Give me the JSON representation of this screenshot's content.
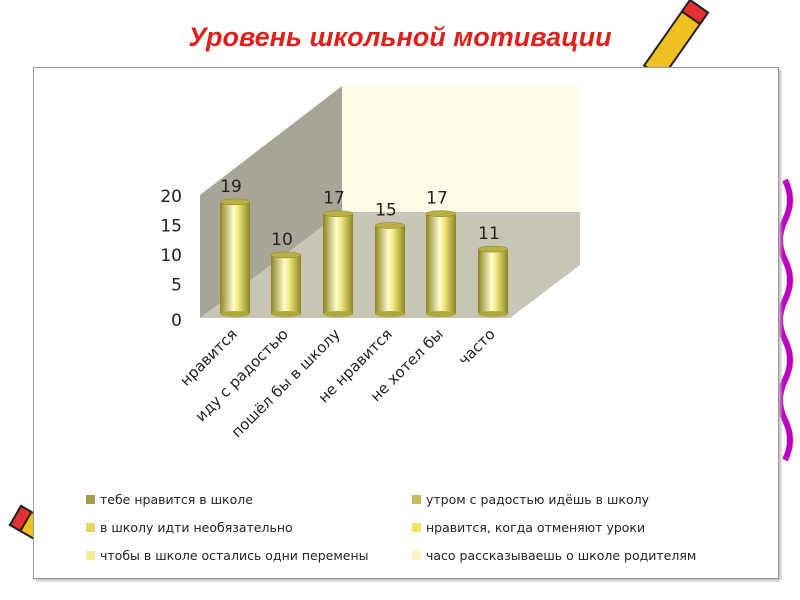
{
  "title": "Уровень школьной мотивации",
  "chart_data": {
    "type": "bar",
    "style": "3d-cylinder",
    "categories": [
      "нравится",
      "иду с радостью",
      "пошёл бы в школу",
      "не нравится",
      "не хотел бы",
      "часто"
    ],
    "values": [
      19,
      10,
      17,
      15,
      17,
      11
    ],
    "ylim": [
      0,
      20
    ],
    "yticks": [
      "0",
      "5",
      "10",
      "15",
      "20"
    ],
    "data_labels": [
      "19",
      "10",
      "17",
      "15",
      "17",
      "11"
    ],
    "grid": false,
    "legend_position": "bottom",
    "legend": [
      {
        "label": "тебе нравится в школе",
        "color": "#a69c4a"
      },
      {
        "label": "утром с радостью идёшь в школу",
        "color": "#c8bd5a"
      },
      {
        "label": "в школу идти необязательно",
        "color": "#e2d660"
      },
      {
        "label": "нравится, когда отменяют уроки",
        "color": "#f0e46a"
      },
      {
        "label": "чтобы в школе остались одни перемены",
        "color": "#f6ee94"
      },
      {
        "label": "часо рассказываешь о школе родителям",
        "color": "#faf4c0"
      }
    ],
    "colors": {
      "bar": "#e8e070",
      "back_wall": "#fffce8",
      "side_wall": "#a8a598",
      "floor": "#c8c4b6",
      "title": "#e0201a"
    }
  }
}
